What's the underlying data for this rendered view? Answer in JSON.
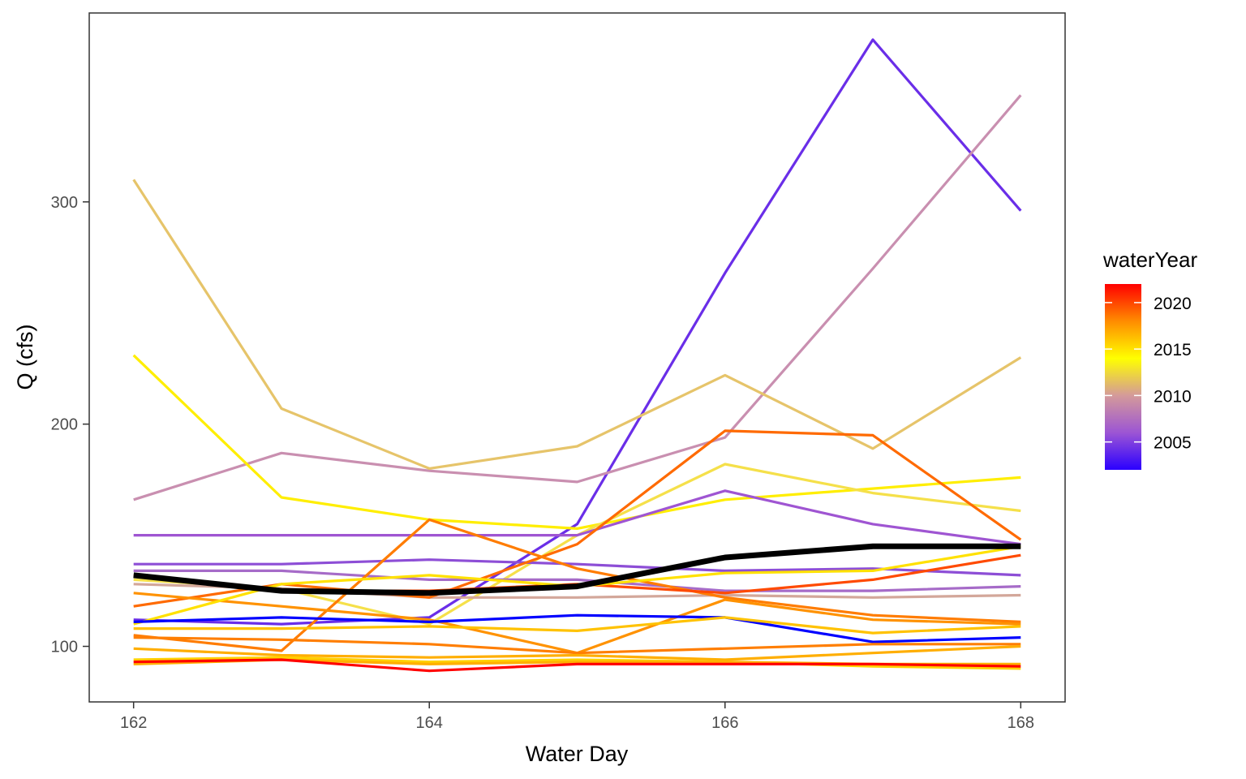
{
  "chart_data": {
    "type": "line",
    "title": "",
    "xlabel": "Water Day",
    "ylabel": "Q (cfs)",
    "xlim": [
      161.7,
      168.3
    ],
    "ylim": [
      75,
      385
    ],
    "xticks": [
      162,
      164,
      166,
      168
    ],
    "yticks": [
      100,
      200,
      300
    ],
    "grid": false,
    "x": [
      162,
      163,
      164,
      165,
      166,
      167,
      168
    ],
    "legend": {
      "title": "waterYear",
      "position": "right",
      "min": 2002,
      "max": 2022,
      "ticks": [
        2005,
        2010,
        2015,
        2020
      ],
      "gradient_colors": [
        "#2b00ff",
        "#9c55d4",
        "#d49a9a",
        "#ffff00",
        "#ff8c00",
        "#ff0000"
      ]
    },
    "series": [
      {
        "color": "#6a2ee8",
        "values": [
          112,
          110,
          113,
          155,
          268,
          373,
          296
        ]
      },
      {
        "color": "#c98fb0",
        "values": [
          166,
          187,
          179,
          174,
          194,
          270,
          348
        ]
      },
      {
        "color": "#e6c46a",
        "values": [
          310,
          207,
          180,
          190,
          222,
          189,
          230
        ]
      },
      {
        "color": "#ffee00",
        "values": [
          231,
          167,
          157,
          153,
          166,
          171,
          176
        ]
      },
      {
        "color": "#f5e04a",
        "values": [
          130,
          126,
          110,
          150,
          182,
          169,
          161
        ]
      },
      {
        "color": "#9f55d2",
        "values": [
          150,
          150,
          150,
          150,
          170,
          155,
          146
        ]
      },
      {
        "color": "#8d4ed6",
        "values": [
          137,
          137,
          139,
          137,
          134,
          135,
          132
        ]
      },
      {
        "color": "#a66bc8",
        "values": [
          134,
          134,
          130,
          130,
          125,
          125,
          127
        ]
      },
      {
        "color": "#d3a79a",
        "values": [
          128,
          126,
          122,
          122,
          123,
          122,
          123
        ]
      },
      {
        "color": "#ff6a00",
        "values": [
          118,
          128,
          122,
          146,
          197,
          195,
          148
        ]
      },
      {
        "color": "#ff7c00",
        "values": [
          105,
          98,
          157,
          135,
          122,
          114,
          111
        ]
      },
      {
        "color": "#ff9200",
        "values": [
          124,
          118,
          112,
          97,
          121,
          112,
          110
        ]
      },
      {
        "color": "#ff4a00",
        "values": [
          132,
          125,
          125,
          128,
          124,
          130,
          141
        ]
      },
      {
        "color": "#ffe100",
        "values": [
          110,
          128,
          132,
          127,
          133,
          134,
          145
        ]
      },
      {
        "color": "#0000ff",
        "values": [
          111,
          113,
          111,
          114,
          113,
          102,
          104
        ]
      },
      {
        "color": "#ffc200",
        "values": [
          108,
          108,
          109,
          107,
          113,
          106,
          109
        ]
      },
      {
        "color": "#ff7e00",
        "values": [
          104,
          103,
          101,
          97,
          99,
          101,
          101
        ]
      },
      {
        "color": "#ffae00",
        "values": [
          99,
          96,
          95,
          96,
          94,
          97,
          100
        ]
      },
      {
        "color": "#ffd000",
        "values": [
          94,
          95,
          93,
          94,
          93,
          91,
          90
        ]
      },
      {
        "color": "#ffb000",
        "values": [
          92,
          94,
          92,
          93,
          93,
          92,
          92
        ]
      },
      {
        "color": "#ff0000",
        "values": [
          93,
          94,
          89,
          92,
          92,
          92,
          91
        ]
      },
      {
        "color": "#000000",
        "width": 7,
        "values": [
          132,
          125,
          124,
          127,
          140,
          145,
          145
        ]
      }
    ]
  }
}
